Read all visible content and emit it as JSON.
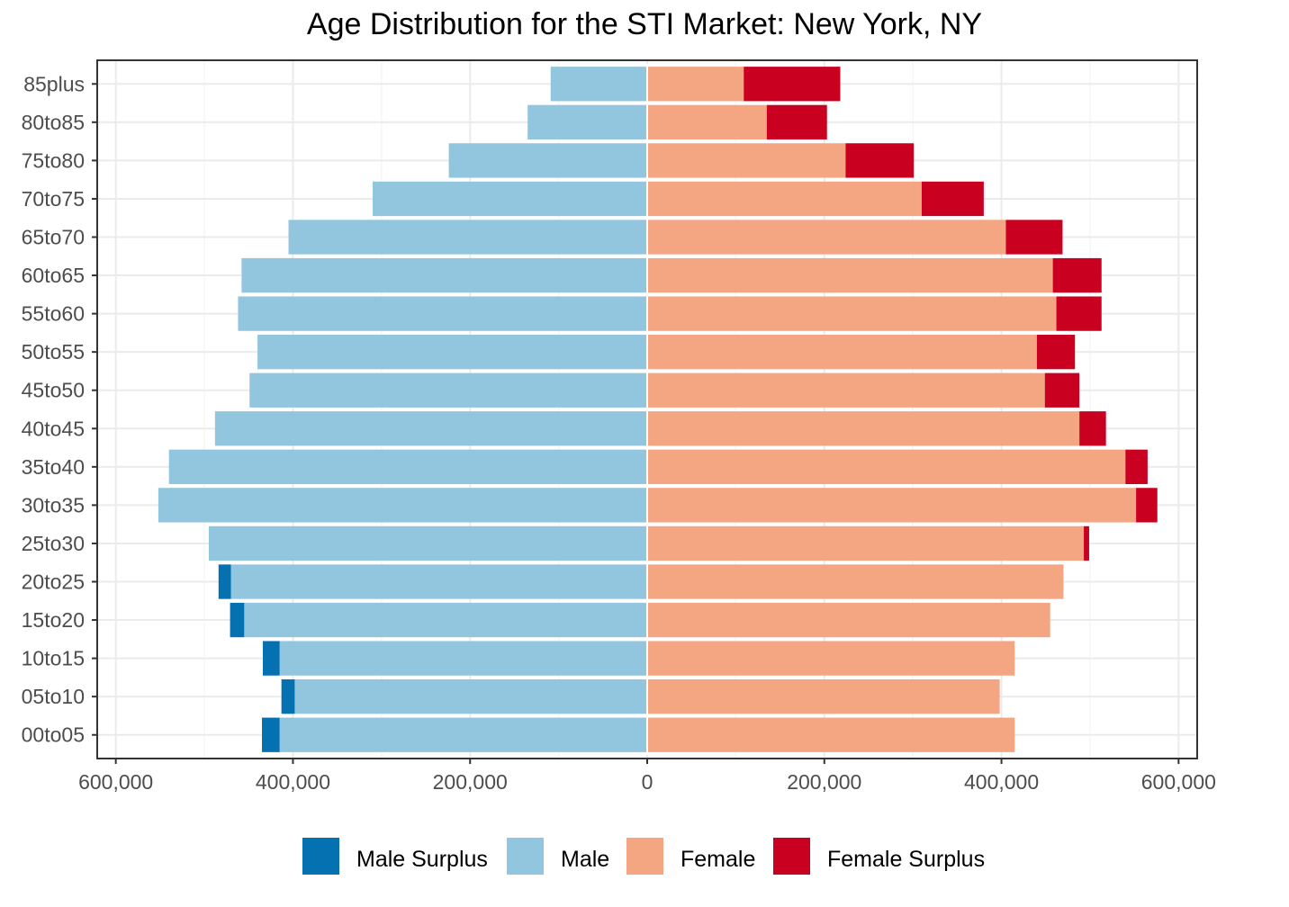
{
  "chart_data": {
    "type": "bar",
    "orientation": "horizontal",
    "layout": "population-pyramid",
    "title": "Age Distribution for the STI Market: New York, NY",
    "xlabel": "",
    "ylabel": "",
    "xlim": [
      -600000,
      600000
    ],
    "xticks": [
      -600000,
      -400000,
      -200000,
      0,
      200000,
      400000,
      600000
    ],
    "xtick_labels": [
      "600,000",
      "400,000",
      "200,000",
      "0",
      "200,000",
      "400,000",
      "600,000"
    ],
    "grid": true,
    "legend_position": "bottom",
    "categories": [
      "00to05",
      "05to10",
      "10to15",
      "15to20",
      "20to25",
      "25to30",
      "30to35",
      "35to40",
      "40to45",
      "45to50",
      "50to55",
      "55to60",
      "60to65",
      "65to70",
      "70to75",
      "75to80",
      "80to85",
      "85plus"
    ],
    "series": [
      {
        "name": "Male Surplus",
        "color": "#0571b0",
        "side": "left",
        "stacked_outside_of": "Male",
        "values": [
          20000,
          15000,
          19000,
          16000,
          14000,
          0,
          0,
          0,
          0,
          0,
          0,
          0,
          0,
          0,
          0,
          0,
          0,
          0
        ]
      },
      {
        "name": "Male",
        "color": "#92c5de",
        "side": "left",
        "values": [
          415000,
          398000,
          415000,
          455000,
          470000,
          495000,
          552000,
          540000,
          488000,
          449000,
          440000,
          462000,
          458000,
          405000,
          310000,
          224000,
          135000,
          109000
        ]
      },
      {
        "name": "Female",
        "color": "#f4a582",
        "side": "right",
        "values": [
          415000,
          398000,
          415000,
          455000,
          470000,
          493000,
          552000,
          540000,
          488000,
          449000,
          440000,
          462000,
          458000,
          405000,
          310000,
          224000,
          135000,
          109000
        ]
      },
      {
        "name": "Female Surplus",
        "color": "#ca0020",
        "side": "right",
        "stacked_outside_of": "Female",
        "values": [
          0,
          0,
          0,
          0,
          0,
          6000,
          24000,
          25000,
          30000,
          39000,
          43000,
          51000,
          55000,
          64000,
          70000,
          77000,
          68000,
          109000
        ]
      }
    ]
  }
}
